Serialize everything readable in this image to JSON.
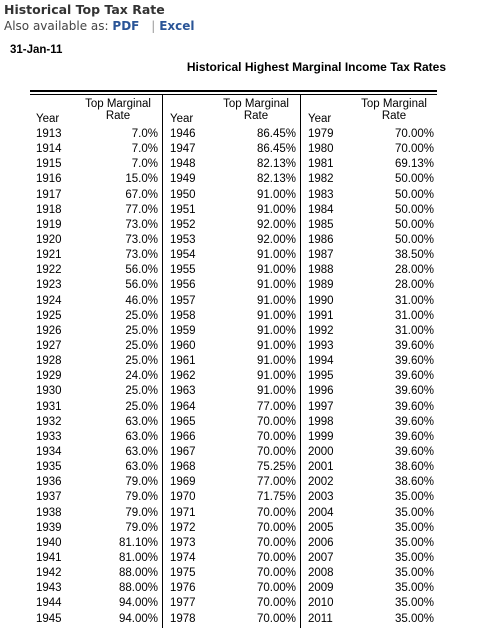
{
  "header": {
    "title": "Historical Top Tax Rate",
    "also_available": "Also available as:",
    "pdf_link": "PDF",
    "separator": "|",
    "excel_link": "Excel"
  },
  "date": "31-Jan-11",
  "table": {
    "title": "Historical Highest Marginal Income Tax Rates",
    "year_header": "Year",
    "rate_header_1": "Top Marginal",
    "rate_header_2": "Rate",
    "groups": [
      [
        [
          "1913",
          "7.0%"
        ],
        [
          "1914",
          "7.0%"
        ],
        [
          "1915",
          "7.0%"
        ],
        [
          "1916",
          "15.0%"
        ],
        [
          "1917",
          "67.0%"
        ],
        [
          "1918",
          "77.0%"
        ],
        [
          "1919",
          "73.0%"
        ],
        [
          "1920",
          "73.0%"
        ],
        [
          "1921",
          "73.0%"
        ],
        [
          "1922",
          "56.0%"
        ],
        [
          "1923",
          "56.0%"
        ],
        [
          "1924",
          "46.0%"
        ],
        [
          "1925",
          "25.0%"
        ],
        [
          "1926",
          "25.0%"
        ],
        [
          "1927",
          "25.0%"
        ],
        [
          "1928",
          "25.0%"
        ],
        [
          "1929",
          "24.0%"
        ],
        [
          "1930",
          "25.0%"
        ],
        [
          "1931",
          "25.0%"
        ],
        [
          "1932",
          "63.0%"
        ],
        [
          "1933",
          "63.0%"
        ],
        [
          "1934",
          "63.0%"
        ],
        [
          "1935",
          "63.0%"
        ],
        [
          "1936",
          "79.0%"
        ],
        [
          "1937",
          "79.0%"
        ],
        [
          "1938",
          "79.0%"
        ],
        [
          "1939",
          "79.0%"
        ],
        [
          "1940",
          "81.10%"
        ],
        [
          "1941",
          "81.00%"
        ],
        [
          "1942",
          "88.00%"
        ],
        [
          "1943",
          "88.00%"
        ],
        [
          "1944",
          "94.00%"
        ],
        [
          "1945",
          "94.00%"
        ]
      ],
      [
        [
          "1946",
          "86.45%"
        ],
        [
          "1947",
          "86.45%"
        ],
        [
          "1948",
          "82.13%"
        ],
        [
          "1949",
          "82.13%"
        ],
        [
          "1950",
          "91.00%"
        ],
        [
          "1951",
          "91.00%"
        ],
        [
          "1952",
          "92.00%"
        ],
        [
          "1953",
          "92.00%"
        ],
        [
          "1954",
          "91.00%"
        ],
        [
          "1955",
          "91.00%"
        ],
        [
          "1956",
          "91.00%"
        ],
        [
          "1957",
          "91.00%"
        ],
        [
          "1958",
          "91.00%"
        ],
        [
          "1959",
          "91.00%"
        ],
        [
          "1960",
          "91.00%"
        ],
        [
          "1961",
          "91.00%"
        ],
        [
          "1962",
          "91.00%"
        ],
        [
          "1963",
          "91.00%"
        ],
        [
          "1964",
          "77.00%"
        ],
        [
          "1965",
          "70.00%"
        ],
        [
          "1966",
          "70.00%"
        ],
        [
          "1967",
          "70.00%"
        ],
        [
          "1968",
          "75.25%"
        ],
        [
          "1969",
          "77.00%"
        ],
        [
          "1970",
          "71.75%"
        ],
        [
          "1971",
          "70.00%"
        ],
        [
          "1972",
          "70.00%"
        ],
        [
          "1973",
          "70.00%"
        ],
        [
          "1974",
          "70.00%"
        ],
        [
          "1975",
          "70.00%"
        ],
        [
          "1976",
          "70.00%"
        ],
        [
          "1977",
          "70.00%"
        ],
        [
          "1978",
          "70.00%"
        ]
      ],
      [
        [
          "1979",
          "70.00%"
        ],
        [
          "1980",
          "70.00%"
        ],
        [
          "1981",
          "69.13%"
        ],
        [
          "1982",
          "50.00%"
        ],
        [
          "1983",
          "50.00%"
        ],
        [
          "1984",
          "50.00%"
        ],
        [
          "1985",
          "50.00%"
        ],
        [
          "1986",
          "50.00%"
        ],
        [
          "1987",
          "38.50%"
        ],
        [
          "1988",
          "28.00%"
        ],
        [
          "1989",
          "28.00%"
        ],
        [
          "1990",
          "31.00%"
        ],
        [
          "1991",
          "31.00%"
        ],
        [
          "1992",
          "31.00%"
        ],
        [
          "1993",
          "39.60%"
        ],
        [
          "1994",
          "39.60%"
        ],
        [
          "1995",
          "39.60%"
        ],
        [
          "1996",
          "39.60%"
        ],
        [
          "1997",
          "39.60%"
        ],
        [
          "1998",
          "39.60%"
        ],
        [
          "1999",
          "39.60%"
        ],
        [
          "2000",
          "39.60%"
        ],
        [
          "2001",
          "38.60%"
        ],
        [
          "2002",
          "38.60%"
        ],
        [
          "2003",
          "35.00%"
        ],
        [
          "2004",
          "35.00%"
        ],
        [
          "2005",
          "35.00%"
        ],
        [
          "2006",
          "35.00%"
        ],
        [
          "2007",
          "35.00%"
        ],
        [
          "2008",
          "35.00%"
        ],
        [
          "2009",
          "35.00%"
        ],
        [
          "2010",
          "35.00%"
        ],
        [
          "2011",
          "35.00%"
        ]
      ]
    ]
  }
}
